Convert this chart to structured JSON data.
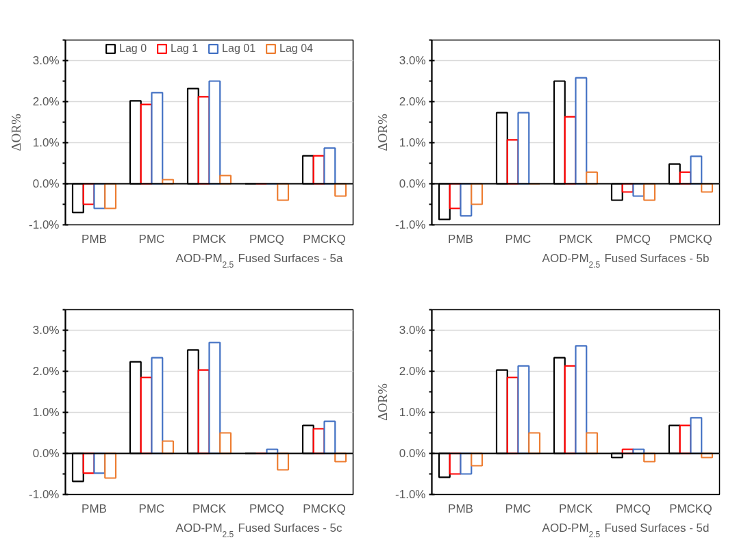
{
  "chart_data": [
    {
      "type": "bar",
      "categories": [
        "PMB",
        "PMC",
        "PMCK",
        "PMCQ",
        "PMCKQ"
      ],
      "xlabel": "AOD-PM$_{2.5}$ Fused Surfaces - 5a",
      "ylabel": "ΔOR%",
      "ylim": [
        -1,
        3.5
      ],
      "yticks": [
        {
          "value": -1,
          "label": "-1.0%"
        },
        {
          "value": 0,
          "label": "0.0%"
        },
        {
          "value": 1,
          "label": "1.0%"
        },
        {
          "value": 2,
          "label": "2.0%"
        },
        {
          "value": 3,
          "label": "3.0%"
        }
      ],
      "grid": "y",
      "legend": "top",
      "series": [
        {
          "name": "Lag 0",
          "color": "#000000",
          "values": [
            -0.7,
            2.02,
            2.32,
            0,
            0.68
          ]
        },
        {
          "name": "Lag 1",
          "color": "#ff0000",
          "values": [
            -0.5,
            1.93,
            2.12,
            0,
            0.68
          ]
        },
        {
          "name": "Lag 01",
          "color": "#4472c4",
          "values": [
            -0.6,
            2.22,
            2.5,
            0,
            0.87
          ]
        },
        {
          "name": "Lag 04",
          "color": "#ed7d31",
          "values": [
            -0.6,
            0.1,
            0.2,
            -0.4,
            -0.3
          ]
        }
      ]
    },
    {
      "type": "bar",
      "categories": [
        "PMB",
        "PMC",
        "PMCK",
        "PMCQ",
        "PMCKQ"
      ],
      "xlabel": "AOD-PM$_{2.5}$ Fused Surfaces - 5b",
      "ylabel": "ΔOR%",
      "ylim": [
        -1,
        3.5
      ],
      "yticks": [
        {
          "value": -1,
          "label": "-1.0%"
        },
        {
          "value": 0,
          "label": "0.0%"
        },
        {
          "value": 1,
          "label": "1.0%"
        },
        {
          "value": 2,
          "label": "2.0%"
        },
        {
          "value": 3,
          "label": "3.0%"
        }
      ],
      "grid": "y",
      "series": [
        {
          "color": "#000000",
          "values": [
            -0.87,
            1.73,
            2.5,
            -0.4,
            0.48
          ]
        },
        {
          "color": "#ff0000",
          "values": [
            -0.6,
            1.07,
            1.63,
            -0.2,
            0.28
          ]
        },
        {
          "color": "#4472c4",
          "values": [
            -0.78,
            1.73,
            2.58,
            -0.3,
            0.67
          ]
        },
        {
          "color": "#ed7d31",
          "values": [
            -0.5,
            0,
            0.28,
            -0.4,
            -0.2
          ]
        }
      ]
    },
    {
      "type": "bar",
      "categories": [
        "PMB",
        "PMC",
        "PMCK",
        "PMCQ",
        "PMCKQ"
      ],
      "xlabel": "AOD-PM$_{2.5}$ Fused Surfaces - 5c",
      "ylim": [
        -1,
        3.5
      ],
      "yticks": [
        {
          "value": -1,
          "label": "-1.0%"
        },
        {
          "value": 0,
          "label": "0.0%"
        },
        {
          "value": 1,
          "label": "1.0%"
        },
        {
          "value": 2,
          "label": "2.0%"
        },
        {
          "value": 3,
          "label": "3.0%"
        }
      ],
      "grid": "y",
      "series": [
        {
          "color": "#000000",
          "values": [
            -0.68,
            2.23,
            2.52,
            0,
            0.68
          ]
        },
        {
          "color": "#ff0000",
          "values": [
            -0.48,
            1.85,
            2.03,
            0,
            0.6
          ]
        },
        {
          "color": "#4472c4",
          "values": [
            -0.48,
            2.33,
            2.7,
            0.1,
            0.78
          ]
        },
        {
          "color": "#ed7d31",
          "values": [
            -0.6,
            0.3,
            0.5,
            -0.4,
            -0.2
          ]
        }
      ]
    },
    {
      "type": "bar",
      "categories": [
        "PMB",
        "PMC",
        "PMCK",
        "PMCQ",
        "PMCKQ"
      ],
      "xlabel": "AOD-PM$_{2.5}$ Fused Surfaces - 5d",
      "ylabel": "ΔOR%",
      "ylim": [
        -1,
        3.5
      ],
      "yticks": [
        {
          "value": -1,
          "label": "-1.0%"
        },
        {
          "value": 0,
          "label": "0.0%"
        },
        {
          "value": 1,
          "label": "1.0%"
        },
        {
          "value": 2,
          "label": "2.0%"
        },
        {
          "value": 3,
          "label": "3.0%"
        }
      ],
      "grid": "y",
      "series": [
        {
          "color": "#000000",
          "values": [
            -0.58,
            2.03,
            2.33,
            -0.1,
            0.68
          ]
        },
        {
          "color": "#ff0000",
          "values": [
            -0.5,
            1.85,
            2.13,
            0.1,
            0.68
          ]
        },
        {
          "color": "#4472c4",
          "values": [
            -0.5,
            2.13,
            2.62,
            0.1,
            0.87
          ]
        },
        {
          "color": "#ed7d31",
          "values": [
            -0.3,
            0.5,
            0.5,
            -0.2,
            -0.1
          ]
        }
      ]
    }
  ]
}
